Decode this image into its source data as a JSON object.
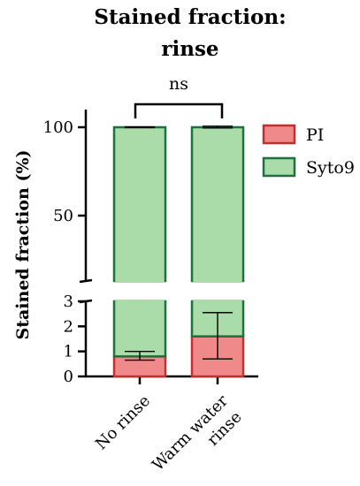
{
  "chart_data": {
    "type": "bar",
    "stacked": true,
    "title_lines": [
      "Stained fraction:",
      "rinse"
    ],
    "xlabel": "",
    "ylabel": "Stained fraction (%)",
    "categories": [
      [
        "No rinse"
      ],
      [
        "Warm water",
        "rinse"
      ]
    ],
    "series": [
      {
        "name": "PI",
        "values": [
          0.8,
          1.6
        ],
        "error": [
          [
            0.65,
            1.0
          ],
          [
            0.7,
            2.55
          ]
        ],
        "color": "#f08a8a",
        "edge_color": "#c0302c"
      },
      {
        "name": "Syto9",
        "values": [
          99.2,
          98.4
        ],
        "error": [
          [
            99.8,
            100.2
          ],
          [
            99.6,
            100.6
          ]
        ],
        "color": "#a9dca8",
        "edge_color": "#1e7040"
      }
    ],
    "axis_break": {
      "lower": {
        "range": [
          0,
          3
        ],
        "ticks": [
          "0",
          "1",
          "2",
          "3"
        ]
      },
      "upper": {
        "range": [
          13,
          110
        ],
        "ticks": [
          "50",
          "100"
        ]
      }
    },
    "significance": {
      "label": "ns",
      "between": [
        0,
        1
      ]
    },
    "legend": {
      "position": "right",
      "entries": [
        "PI",
        "Syto9"
      ]
    },
    "grid": false
  }
}
